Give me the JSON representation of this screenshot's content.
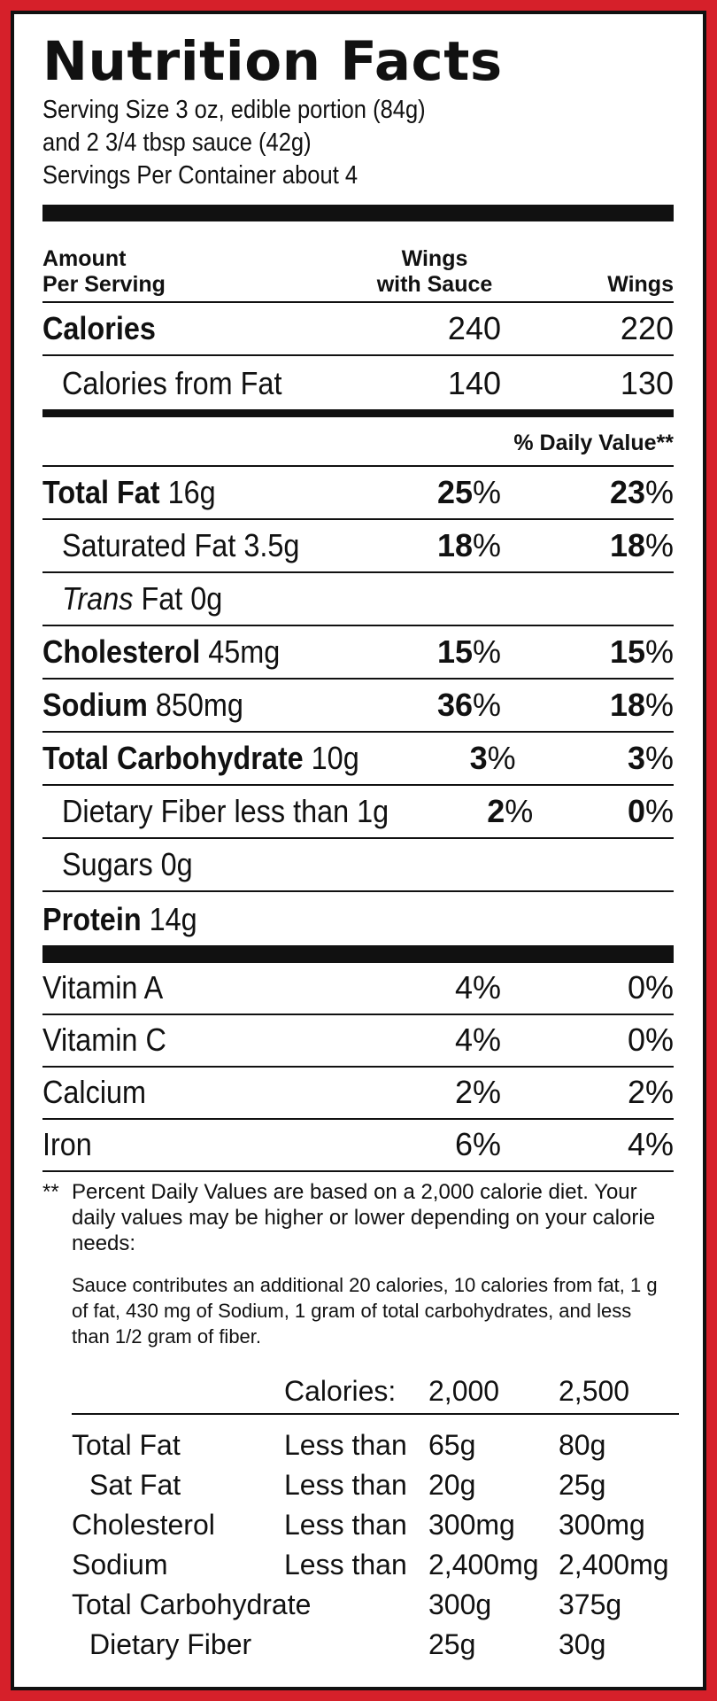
{
  "label": {
    "title": "Nutrition Facts",
    "serving_lines": [
      "Serving Size 3 oz, edible portion (84g)",
      "and 2 3/4 tbsp sauce (42g)",
      "Servings Per Container about 4"
    ],
    "header": {
      "amount_line1": "Amount",
      "amount_line2": "Per Serving",
      "col_a_line1": "Wings",
      "col_a_line2": "with Sauce",
      "col_b": "Wings"
    },
    "calories": {
      "label": "Calories",
      "a": "240",
      "b": "220"
    },
    "calories_fat": {
      "label": "Calories from Fat",
      "a": "140",
      "b": "130"
    },
    "daily_value_header": "% Daily Value**",
    "nutrients": [
      {
        "name": "Total Fat",
        "amount": "16g",
        "a": "25",
        "b": "23"
      },
      {
        "name": "Saturated Fat",
        "amount": "3.5g",
        "a": "18",
        "b": "18"
      },
      {
        "name": "Trans",
        "amount": "Fat 0g",
        "a": "",
        "b": ""
      },
      {
        "name": "Cholesterol",
        "amount": "45mg",
        "a": "15",
        "b": "15"
      },
      {
        "name": "Sodium",
        "amount": "850mg",
        "a": "36",
        "b": "18"
      },
      {
        "name": "Total Carbohydrate",
        "amount": "10g",
        "a": "3",
        "b": "3"
      },
      {
        "name": "Dietary Fiber less than 1g",
        "amount": "",
        "a": "2",
        "b": "0"
      },
      {
        "name": "Sugars 0g",
        "amount": "",
        "a": "",
        "b": ""
      },
      {
        "name": "Protein",
        "amount": "14g",
        "a": "",
        "b": ""
      }
    ],
    "percent_sign": "%",
    "vitamins": [
      {
        "name": "Vitamin A",
        "a": "4%",
        "b": "0%"
      },
      {
        "name": "Vitamin C",
        "a": "4%",
        "b": "0%"
      },
      {
        "name": "Calcium",
        "a": "2%",
        "b": "2%"
      },
      {
        "name": "Iron",
        "a": "6%",
        "b": "4%"
      }
    ],
    "footnote_stars": "**",
    "footnote": "Percent Daily Values are based on a 2,000 calorie diet. Your daily values may be higher or lower depending on your calorie needs:",
    "sauce_note": "Sauce contributes an additional 20 calories, 10 calories from fat, 1 g of fat, 430 mg of Sodium, 1 gram of total carbohydrates, and less than 1/2 gram of fiber.",
    "dv_table": {
      "calories_label": "Calories:",
      "cal_a": "2,000",
      "cal_b": "2,500",
      "rows": [
        {
          "name": "Total Fat",
          "qual": "Less than",
          "a": "65g",
          "b": "80g"
        },
        {
          "name": "Sat Fat",
          "qual": "Less than",
          "a": "20g",
          "b": "25g"
        },
        {
          "name": "Cholesterol",
          "qual": "Less than",
          "a": "300mg",
          "b": "300mg"
        },
        {
          "name": "Sodium",
          "qual": "Less than",
          "a": "2,400mg",
          "b": "2,400mg"
        },
        {
          "name": "Total Carbohydrate",
          "qual": "",
          "a": "300g",
          "b": "375g"
        },
        {
          "name": "Dietary Fiber",
          "qual": "",
          "a": "25g",
          "b": "30g"
        }
      ]
    }
  },
  "colors": {
    "border": "#d6202a",
    "ink": "#111111",
    "background": "#ffffff"
  }
}
